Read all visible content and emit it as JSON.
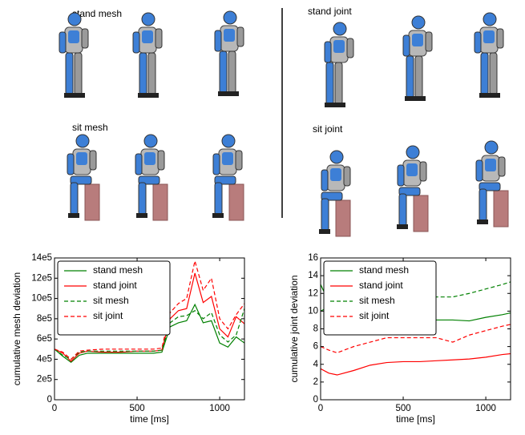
{
  "panels": [
    {
      "label": "stand mesh"
    },
    {
      "label": "stand joint"
    },
    {
      "label": "sit mesh"
    },
    {
      "label": "sit joint"
    }
  ],
  "chart_data": [
    {
      "type": "line",
      "ylabel": "cumulative mesh deviation",
      "xlabel": "time [ms]",
      "xlim": [
        0,
        1150
      ],
      "xticks": [
        0,
        500,
        1000
      ],
      "ylim": [
        0,
        1400000
      ],
      "yticks": [
        0,
        {
          "value": 200000,
          "label": "2e5"
        },
        {
          "value": 400000,
          "label": "4e5"
        },
        {
          "value": 600000,
          "label": "6e5"
        },
        {
          "value": 800000,
          "label": "8e5"
        },
        {
          "value": 1000000,
          "label": "10e5"
        },
        {
          "value": 1200000,
          "label": "12e5"
        },
        {
          "value": 1400000,
          "label": "14e5"
        }
      ],
      "legend": "upper left",
      "x": [
        0,
        50,
        100,
        150,
        200,
        300,
        400,
        500,
        600,
        650,
        700,
        750,
        800,
        850,
        900,
        950,
        1000,
        1050,
        1100,
        1150
      ],
      "series": [
        {
          "name": "stand mesh",
          "color": "#008000",
          "linestyle": "solid",
          "values": [
            500000,
            430000,
            370000,
            440000,
            460000,
            460000,
            460000,
            460000,
            460000,
            470000,
            720000,
            760000,
            780000,
            940000,
            760000,
            780000,
            560000,
            520000,
            620000,
            560000
          ]
        },
        {
          "name": "stand joint",
          "color": "#ff0000",
          "linestyle": "solid",
          "values": [
            500000,
            460000,
            380000,
            460000,
            480000,
            470000,
            470000,
            480000,
            480000,
            490000,
            800000,
            880000,
            900000,
            1250000,
            960000,
            1020000,
            700000,
            620000,
            820000,
            750000
          ]
        },
        {
          "name": "sit mesh",
          "color": "#008000",
          "linestyle": "dashed",
          "values": [
            500000,
            440000,
            400000,
            470000,
            480000,
            480000,
            480000,
            480000,
            480000,
            490000,
            760000,
            820000,
            830000,
            880000,
            800000,
            860000,
            640000,
            570000,
            640000,
            900000
          ]
        },
        {
          "name": "sit joint",
          "color": "#ff0000",
          "linestyle": "dashed",
          "values": [
            500000,
            470000,
            400000,
            480000,
            490000,
            500000,
            500000,
            500000,
            500000,
            510000,
            860000,
            950000,
            1000000,
            1370000,
            1080000,
            1200000,
            800000,
            700000,
            840000,
            950000
          ]
        }
      ]
    },
    {
      "type": "line",
      "ylabel": "cumulative joint deviation",
      "xlabel": "time [ms]",
      "xlim": [
        0,
        1150
      ],
      "xticks": [
        0,
        500,
        1000
      ],
      "ylim": [
        0,
        16
      ],
      "yticks": [
        0,
        2,
        4,
        6,
        8,
        10,
        12,
        14,
        16
      ],
      "legend": "upper left",
      "x": [
        0,
        50,
        100,
        200,
        300,
        400,
        500,
        600,
        700,
        800,
        900,
        1000,
        1100,
        1150
      ],
      "series": [
        {
          "name": "stand mesh",
          "color": "#008000",
          "linestyle": "solid",
          "values": [
            13,
            11,
            10,
            9.2,
            9,
            9,
            9,
            9,
            9,
            9,
            8.9,
            9.3,
            9.6,
            9.8
          ]
        },
        {
          "name": "stand joint",
          "color": "#ff0000",
          "linestyle": "solid",
          "values": [
            3.5,
            3,
            2.8,
            3.3,
            3.9,
            4.2,
            4.3,
            4.3,
            4.4,
            4.5,
            4.6,
            4.8,
            5.1,
            5.2
          ]
        },
        {
          "name": "sit mesh",
          "color": "#008000",
          "linestyle": "dashed",
          "values": [
            10,
            10.5,
            10.8,
            11,
            11.2,
            11.3,
            11.4,
            11.5,
            11.6,
            11.6,
            12,
            12.5,
            13,
            13.3
          ]
        },
        {
          "name": "sit joint",
          "color": "#ff0000",
          "linestyle": "dashed",
          "values": [
            6,
            5.6,
            5.3,
            6,
            6.5,
            7,
            7,
            7,
            7,
            6.5,
            7.3,
            7.8,
            8.3,
            8.5
          ]
        }
      ]
    }
  ]
}
